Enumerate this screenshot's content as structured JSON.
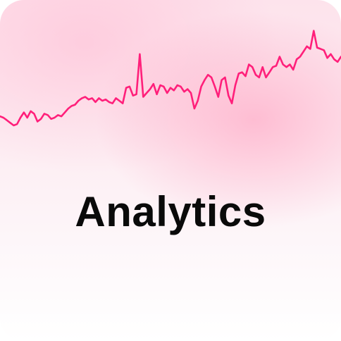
{
  "title": "Analytics",
  "colors": {
    "line": "#ff1f7a",
    "text": "#0a0a0a",
    "background_top": "#fde3ec",
    "background_bottom": "#ffffff"
  },
  "chart_data": {
    "type": "line",
    "grid": false,
    "legend": "none",
    "title": "",
    "xlabel": "",
    "ylabel": "",
    "ylim": [
      0,
      100
    ],
    "x": [
      0,
      4,
      8,
      12,
      16,
      20,
      24,
      28,
      32,
      36,
      40,
      44,
      48,
      52,
      56,
      60,
      64,
      68,
      72,
      76,
      80,
      84,
      88,
      92,
      96,
      100,
      104,
      108,
      112,
      116,
      120,
      124,
      128,
      132,
      136,
      140,
      144,
      148,
      152,
      156,
      160,
      164,
      168,
      172,
      176,
      180,
      184,
      188,
      192,
      196,
      200,
      204,
      208,
      212,
      216,
      220,
      224,
      228,
      232,
      236,
      240,
      244,
      248,
      252,
      256,
      260,
      264,
      268,
      272,
      276,
      280,
      284,
      288,
      292,
      296,
      300,
      304,
      308,
      312,
      316,
      320,
      324,
      328,
      332,
      336,
      340,
      344,
      348,
      352,
      356,
      360,
      364,
      368,
      372,
      376,
      380,
      384,
      388,
      392,
      396,
      400
    ],
    "series": [
      {
        "values": [
          32,
          31,
          29,
          27,
          25,
          26,
          31,
          35,
          31,
          36,
          34,
          28,
          30,
          34,
          33,
          30,
          31,
          33,
          32,
          35,
          38,
          40,
          41,
          44,
          46,
          47,
          45,
          46,
          43,
          46,
          44,
          45,
          43,
          42,
          46,
          44,
          42,
          54,
          55,
          48,
          49,
          80,
          47,
          50,
          53,
          57,
          49,
          56,
          55,
          50,
          54,
          52,
          56,
          55,
          51,
          53,
          50,
          38,
          44,
          55,
          60,
          64,
          62,
          55,
          47,
          60,
          62,
          48,
          42,
          56,
          65,
          66,
          63,
          72,
          70,
          64,
          62,
          70,
          62,
          66,
          70,
          71,
          78,
          72,
          70,
          72,
          68,
          76,
          78,
          82,
          86,
          84,
          98,
          85,
          84,
          83,
          77,
          80,
          76,
          74,
          78
        ]
      }
    ]
  }
}
